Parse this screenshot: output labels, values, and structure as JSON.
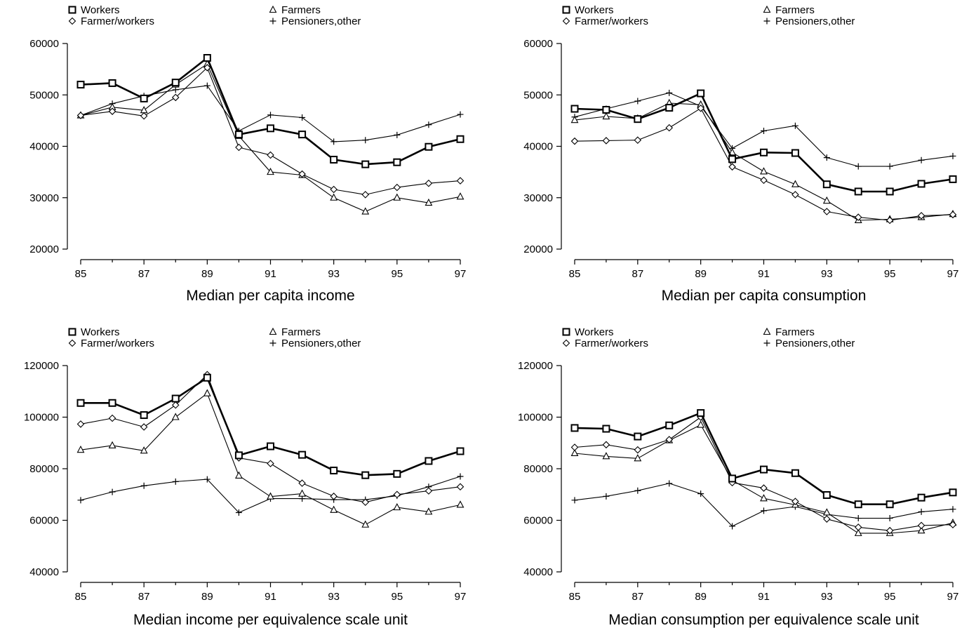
{
  "chart_data": [
    {
      "type": "line",
      "title": "Median per capita income",
      "x": [
        85,
        86,
        87,
        88,
        89,
        90,
        91,
        92,
        93,
        94,
        95,
        96,
        97
      ],
      "xticks": [
        85,
        87,
        89,
        91,
        93,
        95,
        97
      ],
      "yticks": [
        20000,
        30000,
        40000,
        50000,
        60000
      ],
      "ylim": [
        19000,
        61500
      ],
      "xlim": [
        84.8,
        97.2
      ],
      "legend": "top",
      "series": [
        {
          "name": "Workers",
          "marker": "square",
          "weight": "bold",
          "values": [
            52000,
            52300,
            49300,
            52400,
            57200,
            42300,
            43500,
            42300,
            37400,
            36500,
            36900,
            39900,
            41400
          ]
        },
        {
          "name": "Farmers",
          "marker": "triangle",
          "weight": "thin",
          "values": [
            46000,
            47600,
            47000,
            52000,
            56000,
            42000,
            35000,
            34400,
            30000,
            27300,
            30000,
            29000,
            30200
          ]
        },
        {
          "name": "Farmer/workers",
          "marker": "diamond",
          "weight": "thin",
          "values": [
            46000,
            46800,
            45900,
            49500,
            55300,
            39800,
            38300,
            34600,
            31600,
            30600,
            32000,
            32800,
            33300
          ]
        },
        {
          "name": "Pensioners,other",
          "marker": "plus",
          "weight": "thin",
          "values": [
            46000,
            48300,
            49800,
            51000,
            51800,
            43000,
            46100,
            45600,
            40900,
            41200,
            42200,
            44200,
            46200
          ]
        }
      ]
    },
    {
      "type": "line",
      "title": "Median per capita consumption",
      "x": [
        85,
        86,
        87,
        88,
        89,
        90,
        91,
        92,
        93,
        94,
        95,
        96,
        97
      ],
      "xticks": [
        85,
        87,
        89,
        91,
        93,
        95,
        97
      ],
      "yticks": [
        20000,
        30000,
        40000,
        50000,
        60000
      ],
      "ylim": [
        19000,
        61500
      ],
      "xlim": [
        84.8,
        97.2
      ],
      "legend": "top",
      "series": [
        {
          "name": "Workers",
          "marker": "square",
          "weight": "bold",
          "values": [
            47300,
            47100,
            45300,
            47500,
            50300,
            37500,
            38800,
            38700,
            32600,
            31200,
            31200,
            32700,
            33600
          ]
        },
        {
          "name": "Farmers",
          "marker": "triangle",
          "weight": "thin",
          "values": [
            45100,
            45800,
            45400,
            48400,
            48100,
            38800,
            35100,
            32600,
            29400,
            25600,
            25800,
            26200,
            26800
          ]
        },
        {
          "name": "Farmer/workers",
          "marker": "diamond",
          "weight": "thin",
          "values": [
            41000,
            41100,
            41200,
            43600,
            47400,
            36000,
            33400,
            30600,
            27300,
            26200,
            25600,
            26500,
            26700
          ]
        },
        {
          "name": "Pensioners,other",
          "marker": "plus",
          "weight": "thin",
          "values": [
            45700,
            47300,
            48800,
            50400,
            47800,
            39600,
            43000,
            44000,
            37800,
            36100,
            36100,
            37300,
            38100
          ]
        }
      ]
    },
    {
      "type": "line",
      "title": "Median income per equivalence scale unit",
      "x": [
        85,
        86,
        87,
        88,
        89,
        90,
        91,
        92,
        93,
        94,
        95,
        96,
        97
      ],
      "xticks": [
        85,
        87,
        89,
        91,
        93,
        95,
        97
      ],
      "yticks": [
        40000,
        60000,
        80000,
        100000,
        120000
      ],
      "ylim": [
        38000,
        123000
      ],
      "xlim": [
        84.8,
        97.2
      ],
      "legend": "top",
      "series": [
        {
          "name": "Workers",
          "marker": "square",
          "weight": "bold",
          "values": [
            105500,
            105500,
            100800,
            107200,
            115300,
            85200,
            88700,
            85400,
            79300,
            77500,
            78000,
            83000,
            86800
          ]
        },
        {
          "name": "Farmers",
          "marker": "triangle",
          "weight": "thin",
          "values": [
            87300,
            89000,
            87000,
            100000,
            109200,
            77300,
            69200,
            70300,
            64000,
            58300,
            65000,
            63300,
            66000
          ]
        },
        {
          "name": "Farmer/workers",
          "marker": "diamond",
          "weight": "thin",
          "values": [
            97300,
            99600,
            96200,
            104700,
            116500,
            84200,
            82000,
            74400,
            69300,
            67000,
            70000,
            71400,
            73000
          ]
        },
        {
          "name": "Pensioners,other",
          "marker": "plus",
          "weight": "thin",
          "values": [
            67800,
            71000,
            73400,
            75000,
            75900,
            63000,
            68400,
            68400,
            68000,
            68000,
            69500,
            73000,
            77000
          ]
        }
      ]
    },
    {
      "type": "line",
      "title": "Median consumption per equivalence scale unit",
      "x": [
        85,
        86,
        87,
        88,
        89,
        90,
        91,
        92,
        93,
        94,
        95,
        96,
        97
      ],
      "xticks": [
        85,
        87,
        89,
        91,
        93,
        95,
        97
      ],
      "yticks": [
        40000,
        60000,
        80000,
        100000,
        120000
      ],
      "ylim": [
        38000,
        123000
      ],
      "xlim": [
        84.8,
        97.2
      ],
      "legend": "top",
      "series": [
        {
          "name": "Workers",
          "marker": "square",
          "weight": "bold",
          "values": [
            95800,
            95500,
            92500,
            96800,
            101600,
            76200,
            79700,
            78300,
            69800,
            66200,
            66200,
            68800,
            70800
          ]
        },
        {
          "name": "Farmers",
          "marker": "triangle",
          "weight": "thin",
          "values": [
            86000,
            84800,
            84000,
            91000,
            97000,
            75500,
            68500,
            66000,
            63000,
            55000,
            55000,
            56000,
            59000
          ]
        },
        {
          "name": "Farmer/workers",
          "marker": "diamond",
          "weight": "thin",
          "values": [
            88300,
            89300,
            87300,
            91300,
            100000,
            74600,
            72500,
            67300,
            60500,
            57300,
            56000,
            58000,
            58300
          ]
        },
        {
          "name": "Pensioners,other",
          "marker": "plus",
          "weight": "thin",
          "values": [
            67800,
            69300,
            71500,
            74300,
            70300,
            57700,
            63700,
            65300,
            62300,
            60800,
            60800,
            63300,
            64300
          ]
        }
      ]
    }
  ]
}
